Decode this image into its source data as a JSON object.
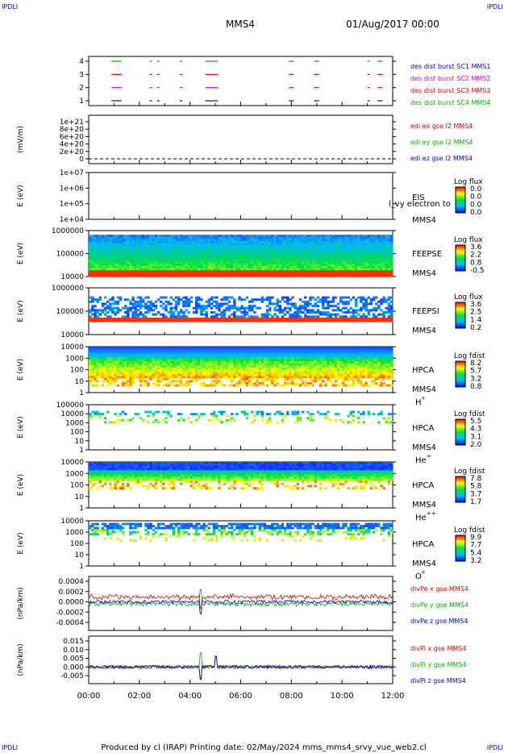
{
  "corner_label": "IPDLI",
  "header": {
    "mission": "MMS4",
    "date": "01/Aug/2017 00:00"
  },
  "footer": "Produced by cl (IRAP)   Printing date: 02/May/2024   mms_mms4_srvy_vue_web2.cl",
  "chart_data": {
    "type": "multi-panel",
    "x_range": [
      "00:00",
      "12:00"
    ],
    "x_ticks": [
      "00:00",
      "02:00",
      "04:00",
      "06:00",
      "08:00",
      "10:00",
      "12:00"
    ],
    "panels": [
      {
        "id": "burst",
        "type": "timeline",
        "yticks": [
          "4",
          "3",
          "2",
          "1"
        ],
        "legend": [
          {
            "text": "des dist burst SC1 MMS1",
            "color": "#0000cc"
          },
          {
            "text": "des dist burst SC2 MMS2",
            "color": "#cc00cc"
          },
          {
            "text": "des dist burst SC3 MMS3",
            "color": "#dd0000"
          },
          {
            "text": "des dist burst SC4 MMS4",
            "color": "#00aa00"
          }
        ],
        "bursts_hours": [
          [
            0.9,
            1.3
          ],
          [
            2.4,
            2.5
          ],
          [
            2.7,
            2.8
          ],
          [
            3.6,
            3.7
          ],
          [
            4.6,
            5.1
          ],
          [
            7.9,
            8.1
          ],
          [
            8.9,
            9.1
          ],
          [
            11.0,
            11.1
          ],
          [
            11.4,
            11.6
          ]
        ]
      },
      {
        "id": "efield",
        "type": "line",
        "ylabel": "(mV/m)",
        "yticks": [
          "1e+21",
          "8e+20",
          "6e+20",
          "4e+20",
          "2e+20",
          "0"
        ],
        "legend": [
          {
            "text": "edi ex gse l2 MMS4",
            "color": "#dd0000"
          },
          {
            "text": "edi ey gse l2 MMS4",
            "color": "#00aa00"
          },
          {
            "text": "edi ez gse l2 MMS4",
            "color": "#0000cc"
          }
        ]
      },
      {
        "id": "eis",
        "type": "spectrogram",
        "ylabel": "E (eV)",
        "yticks": [
          "1e+07",
          "1e+06",
          "1e+05",
          "1e+04"
        ],
        "labels": [
          "EIS",
          "MMS4"
        ],
        "overlay_text": "l_vy electron to",
        "cbar_title": "Log flux",
        "cbar_ticks": [
          "0.0",
          "0.0",
          "0.0",
          "0.0"
        ]
      },
      {
        "id": "feepse",
        "type": "spectrogram",
        "ylabel": "E (eV)",
        "yticks": [
          "1000000",
          "100000",
          "10000"
        ],
        "labels": [
          "FEEPSE",
          "MMS4"
        ],
        "cbar_title": "Log flux",
        "cbar_ticks": [
          "3.6",
          "2.2",
          "0.8",
          "-0.5"
        ]
      },
      {
        "id": "feepsi",
        "type": "spectrogram",
        "ylabel": "E (eV)",
        "yticks": [
          "1000000",
          "100000",
          "10000"
        ],
        "labels": [
          "FEEPSI",
          "MMS4"
        ],
        "cbar_title": "Log flux",
        "cbar_ticks": [
          "3.6",
          "2.5",
          "1.4",
          "0.2"
        ]
      },
      {
        "id": "hpca_h",
        "type": "spectrogram",
        "ylabel": "E (eV)",
        "yticks": [
          "10000",
          "1000",
          "100",
          "10",
          "1"
        ],
        "labels": [
          "HPCA",
          "MMS4"
        ],
        "species": "H",
        "species_sup": "+",
        "cbar_title": "Log fdist",
        "cbar_ticks": [
          "8.2",
          "5.7",
          "3.2",
          "0.8"
        ]
      },
      {
        "id": "hpca_he",
        "type": "spectrogram",
        "ylabel": "E (eV)",
        "yticks": [
          "100000",
          "10000",
          "1000",
          "100",
          "10",
          "1"
        ],
        "labels": [
          "HPCA",
          "MMS4"
        ],
        "species": "He",
        "species_sup": "+",
        "cbar_title": "Log fdist",
        "cbar_ticks": [
          "5.5",
          "4.3",
          "3.1",
          "2.0"
        ]
      },
      {
        "id": "hpca_hepp",
        "type": "spectrogram",
        "ylabel": "E (eV)",
        "yticks": [
          "10000",
          "1000",
          "100",
          "10",
          "1"
        ],
        "labels": [
          "HPCA",
          "MMS4"
        ],
        "species": "He",
        "species_sup": "++",
        "cbar_title": "Log fdist",
        "cbar_ticks": [
          "7.8",
          "5.8",
          "3.7",
          "1.7"
        ]
      },
      {
        "id": "hpca_o",
        "type": "spectrogram",
        "ylabel": "E (eV)",
        "yticks": [
          "10000",
          "1000",
          "100",
          "10",
          "1"
        ],
        "labels": [
          "HPCA",
          "MMS4"
        ],
        "species": "O",
        "species_sup": "+",
        "cbar_title": "Log fdist",
        "cbar_ticks": [
          "9.9",
          "7.7",
          "5.4",
          "3.2"
        ]
      },
      {
        "id": "divpe",
        "type": "line",
        "ylabel": "(nPa/km)",
        "yticks": [
          "0.0004",
          "0.0002",
          "0.0000",
          "-0.0002",
          "-0.0004"
        ],
        "legend": [
          {
            "text": "divPe x gse MMS4",
            "color": "#dd0000"
          },
          {
            "text": "divPe y gse MMS4",
            "color": "#00aa00"
          },
          {
            "text": "divPe z gse MMS4",
            "color": "#0000cc"
          }
        ]
      },
      {
        "id": "divpi",
        "type": "line",
        "ylabel": "(nPa/km)",
        "yticks": [
          "0.015",
          "0.010",
          "0.005",
          "0.000",
          "-0.005"
        ],
        "legend": [
          {
            "text": "divPi x gse MMS4",
            "color": "#dd0000"
          },
          {
            "text": "divPi y gse MMS4",
            "color": "#00aa00"
          },
          {
            "text": "divPi z gse MMS4",
            "color": "#0000cc"
          }
        ]
      }
    ]
  }
}
